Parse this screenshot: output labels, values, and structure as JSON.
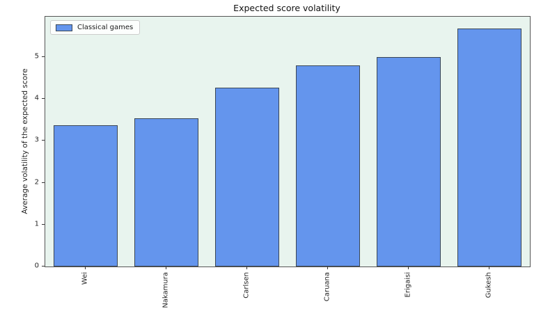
{
  "chart_data": {
    "type": "bar",
    "title": "Expected score volatility",
    "xlabel": "",
    "ylabel": "Average volatility of the expected score",
    "categories": [
      "Wei",
      "Nakamura",
      "Carlsen",
      "Caruana",
      "Erigaisi",
      "Gukesh"
    ],
    "values": [
      3.37,
      3.53,
      4.26,
      4.8,
      5.0,
      5.68
    ],
    "yticks": [
      0,
      1,
      2,
      3,
      4,
      5
    ],
    "ylim": [
      0,
      5.96
    ],
    "grid": false,
    "legend": {
      "position": "upper left",
      "entries": [
        "Classical games"
      ]
    },
    "colors": {
      "bar_fill": "#6495ed",
      "bar_edge": "#3a4654",
      "plot_background": "#e8f4ee",
      "figure_background": "#ffffff"
    },
    "bar_width_fraction": 0.8,
    "x_tick_rotation_deg": 90
  }
}
